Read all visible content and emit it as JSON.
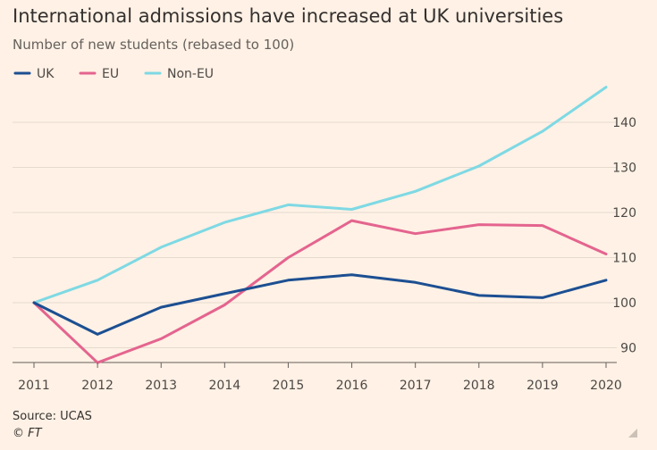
{
  "chart_data": {
    "type": "line",
    "title": "International admissions have increased at UK universities",
    "subtitle": "Number of new students (rebased to 100)",
    "x": [
      "2011",
      "2012",
      "2013",
      "2014",
      "2015",
      "2016",
      "2017",
      "2018",
      "2019",
      "2020"
    ],
    "series": [
      {
        "name": "UK",
        "color": "#1c4f92",
        "values": [
          100,
          93,
          99,
          102,
          105,
          106.2,
          104.5,
          101.6,
          101.1,
          105
        ]
      },
      {
        "name": "EU",
        "color": "#e4648f",
        "values": [
          100,
          86.7,
          92,
          99.5,
          110,
          118.2,
          115.3,
          117.3,
          117.1,
          110.8
        ]
      },
      {
        "name": "Non-EU",
        "color": "#7ed9e4",
        "values": [
          100,
          105,
          112.3,
          117.8,
          121.7,
          120.7,
          124.7,
          130.3,
          138,
          147.8
        ]
      }
    ],
    "yticks": [
      90,
      100,
      110,
      120,
      130,
      140
    ],
    "ylim": [
      85,
      150
    ],
    "grid": true,
    "legend": "top-left",
    "source": "Source: UCAS",
    "credit": "© FT"
  }
}
